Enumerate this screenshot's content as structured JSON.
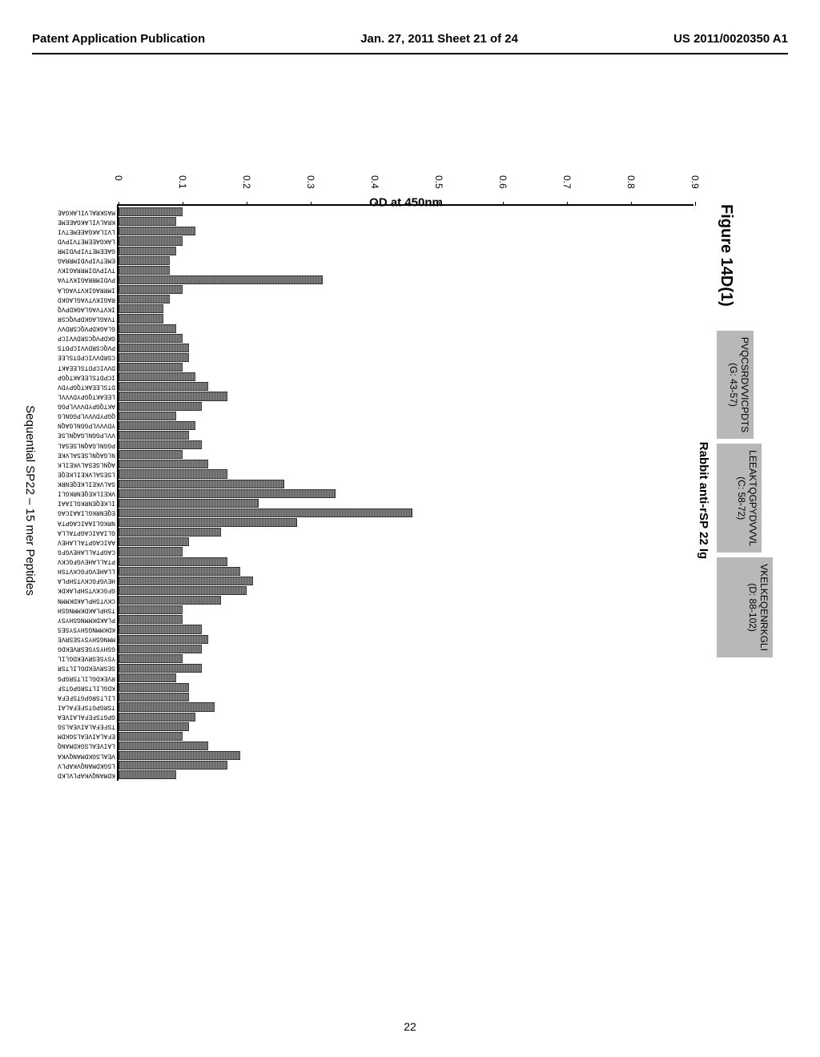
{
  "header": {
    "left": "Patent Application Publication",
    "center": "Jan. 27, 2011  Sheet 21 of 24",
    "right": "US 2011/0020350 A1"
  },
  "figure": {
    "label": "Figure 14D(1)",
    "chart_title": "Rabbit anti-rSP 22 Ig",
    "ylabel": "OD at 450nm",
    "xlabel": "Sequential SP22 – 15 mer Peptides",
    "ymax": 0.9,
    "yticks": [
      0,
      0.1,
      0.2,
      0.3,
      0.4,
      0.5,
      0.6,
      0.7,
      0.8,
      0.9
    ],
    "bar_color": "#6a6a6a",
    "epitope_boxes": [
      {
        "seq": "PVQCSRDVVICPDTS",
        "range": "(G: 43-57)",
        "height_class": "epitope-low"
      },
      {
        "seq": "LEEAKTQGPYDVVVL",
        "range": "(C: 58-72)",
        "height_class": "epitope-mid"
      },
      {
        "seq": "VKELKEQENRKGLI",
        "range": "(D: 88-102)",
        "height_class": "epitope-high"
      }
    ],
    "bars": [
      {
        "label": "MASKRALVILAKGAE",
        "value": 0.1
      },
      {
        "label": "KRALVILAKGAEEME",
        "value": 0.09
      },
      {
        "label": "LVILAKGAEEMETVI",
        "value": 0.12
      },
      {
        "label": "LAKGAEEMETVIPVD",
        "value": 0.1
      },
      {
        "label": "GAEEMETVIPVDIMR",
        "value": 0.09
      },
      {
        "label": "EMETVIPVDIMRRAG",
        "value": 0.08
      },
      {
        "label": "TVIPVDIMRRAGIKV",
        "value": 0.08
      },
      {
        "label": "PVDIMRRAGIKVTVA",
        "value": 0.32
      },
      {
        "label": "IMRRAGIKVTVAGLA",
        "value": 0.1
      },
      {
        "label": "RAGIKVTVAGLAGKD",
        "value": 0.08
      },
      {
        "label": "IKVTVAGLAGKDPVQ",
        "value": 0.07
      },
      {
        "label": "TVAGLAGKDPVQCSR",
        "value": 0.07
      },
      {
        "label": "GLAGKDPVQCSRDVV",
        "value": 0.09
      },
      {
        "label": "GKDPVQCSRDVVICP",
        "value": 0.1
      },
      {
        "label": "PVQCSRDVVICPDTS",
        "value": 0.11
      },
      {
        "label": "CSRDVVICPDTSLEE",
        "value": 0.11
      },
      {
        "label": "DVVICPDTSLEEAKT",
        "value": 0.1
      },
      {
        "label": "ICPDTSLEEAKTQGP",
        "value": 0.12
      },
      {
        "label": "DTSLEEAKTQGPYDV",
        "value": 0.14
      },
      {
        "label": "LEEAKTQGPYDVVVL",
        "value": 0.17
      },
      {
        "label": "AKTQGPYDVVVLPGG",
        "value": 0.13
      },
      {
        "label": "QGPYDVVVLPGGNLG",
        "value": 0.09
      },
      {
        "label": "YDVVVLPGGNLGAQN",
        "value": 0.12
      },
      {
        "label": "VVLPGGNLGAQNLSE",
        "value": 0.11
      },
      {
        "label": "PGGNLGAQNLSESAL",
        "value": 0.13
      },
      {
        "label": "NLGAQNLSESALVKE",
        "value": 0.1
      },
      {
        "label": "AQNLSESALVKEILK",
        "value": 0.14
      },
      {
        "label": "LSESALVKEILKEQE",
        "value": 0.17
      },
      {
        "label": "SALVKEILKEQENRK",
        "value": 0.26
      },
      {
        "label": "VKEILKEQENRKGLI",
        "value": 0.34
      },
      {
        "label": "ILKEQENRKGLIAAI",
        "value": 0.22
      },
      {
        "label": "EQENRKGLIAAICAG",
        "value": 0.46
      },
      {
        "label": "NRKGLIAAICAGPTA",
        "value": 0.28
      },
      {
        "label": "GLIAAICAGPTALLA",
        "value": 0.16
      },
      {
        "label": "AAICAGPTALLAHEV",
        "value": 0.11
      },
      {
        "label": "CAGPTALLAHEVGFG",
        "value": 0.1
      },
      {
        "label": "PTALLAHEVGFGCKV",
        "value": 0.17
      },
      {
        "label": "LLAHEVGFGCKVTSH",
        "value": 0.19
      },
      {
        "label": "HEVGFGCKVTSHPLA",
        "value": 0.21
      },
      {
        "label": "GFGCKVTSHPLAKDK",
        "value": 0.2
      },
      {
        "label": "CKVTSHPLAKDKMMN",
        "value": 0.16
      },
      {
        "label": "TSHPLAKDKMMNGSH",
        "value": 0.1
      },
      {
        "label": "PLAKDKMMNGSHYSY",
        "value": 0.1
      },
      {
        "label": "KDKMMNGSHYSYSES",
        "value": 0.13
      },
      {
        "label": "MMNGSHYSYSESRVE",
        "value": 0.14
      },
      {
        "label": "GSHYSYSESRVEKDG",
        "value": 0.13
      },
      {
        "label": "YSYSESRVEKDGLIL",
        "value": 0.1
      },
      {
        "label": "SESRVEKDGLILTSR",
        "value": 0.13
      },
      {
        "label": "RVEKDGLILTSRGPG",
        "value": 0.09
      },
      {
        "label": "KDGLILTSRGPGTSF",
        "value": 0.11
      },
      {
        "label": "LILTSRGPGTSFEFA",
        "value": 0.11
      },
      {
        "label": "TSRGPGTSFEFALAI",
        "value": 0.15
      },
      {
        "label": "GPGTSFEFALAIVEA",
        "value": 0.12
      },
      {
        "label": "TSFEFALAIVEALSG",
        "value": 0.11
      },
      {
        "label": "EFALAIVEALSGKDM",
        "value": 0.1
      },
      {
        "label": "LAIVEALSGKDMANQ",
        "value": 0.14
      },
      {
        "label": "VEALSGKDMANQVKA",
        "value": 0.19
      },
      {
        "label": "LSGKDMANQVKAPLV",
        "value": 0.17
      },
      {
        "label": "KDMANQVKAPLVLKD",
        "value": 0.09
      }
    ]
  },
  "page_number": "22"
}
